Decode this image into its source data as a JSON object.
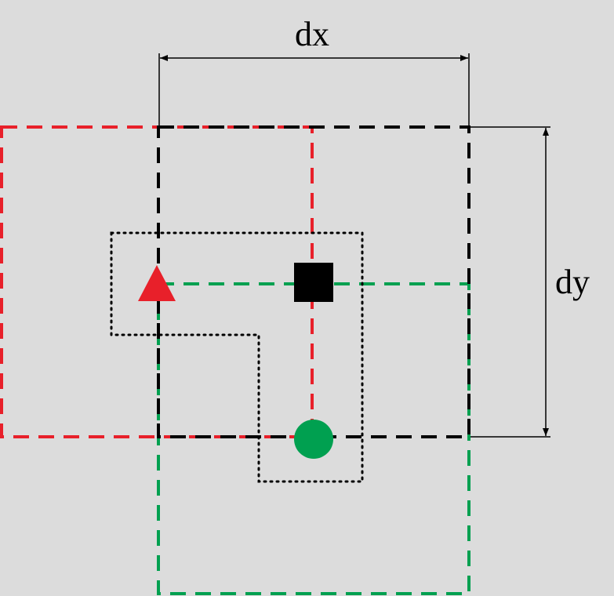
{
  "colors": {
    "background": "#dcdcdc",
    "red": "#e8202a",
    "green": "#00a050",
    "black": "#000000"
  },
  "labels": {
    "dx": "dx",
    "dy": "dy"
  },
  "markers": {
    "triangle": "red-triangle",
    "square": "black-square",
    "circle": "green-circle"
  }
}
